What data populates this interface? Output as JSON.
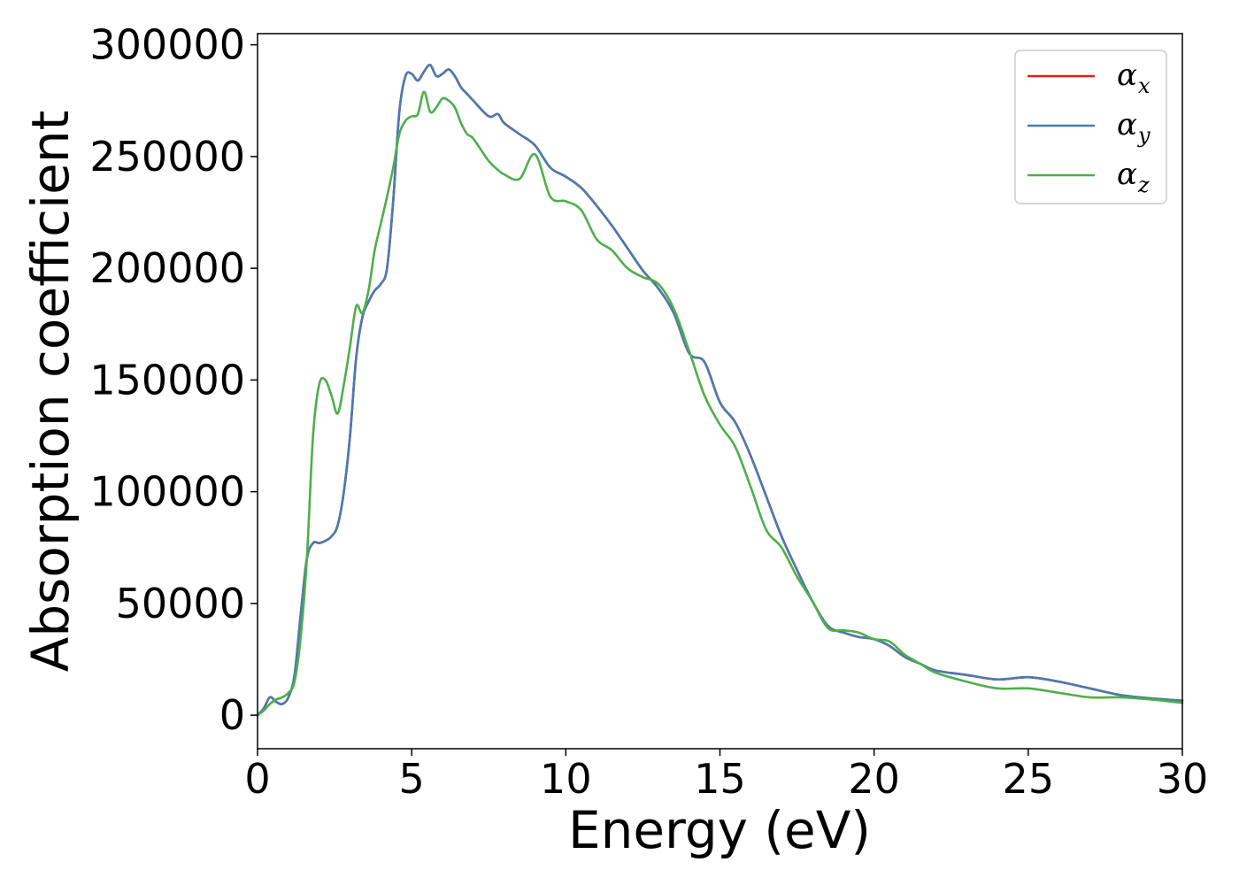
{
  "chart_data": {
    "type": "line",
    "title": "",
    "xlabel": "Energy (eV)",
    "ylabel": "Absorption coefficient",
    "xlim": [
      0,
      30
    ],
    "ylim": [
      -15000,
      305000
    ],
    "xticks": [
      0,
      5,
      10,
      15,
      20,
      25,
      30
    ],
    "xtick_labels": [
      "0",
      "5",
      "10",
      "15",
      "20",
      "25",
      "30"
    ],
    "yticks": [
      0,
      50000,
      100000,
      150000,
      200000,
      250000,
      300000
    ],
    "ytick_labels": [
      "0",
      "50000",
      "100000",
      "150000",
      "200000",
      "250000",
      "300000"
    ],
    "grid": false,
    "legend_position": "top-right",
    "series": [
      {
        "name": "αx",
        "legend_base": "α",
        "legend_sub": "x",
        "color": "#e41a1c",
        "x": [
          0,
          0.2,
          0.4,
          0.6,
          0.8,
          1.0,
          1.2,
          1.4,
          1.6,
          1.8,
          2.0,
          2.2,
          2.4,
          2.6,
          2.8,
          3.0,
          3.2,
          3.4,
          3.6,
          3.8,
          4.0,
          4.2,
          4.4,
          4.6,
          4.8,
          5.0,
          5.2,
          5.4,
          5.6,
          5.8,
          6.0,
          6.2,
          6.4,
          6.6,
          6.8,
          7.0,
          7.5,
          7.8,
          8.0,
          8.5,
          9.0,
          9.5,
          10.0,
          10.5,
          11.0,
          11.5,
          12.0,
          12.5,
          13.0,
          13.5,
          14.0,
          14.5,
          15.0,
          15.5,
          16.0,
          16.5,
          17.0,
          17.5,
          18.0,
          18.5,
          19.0,
          19.5,
          20.0,
          20.5,
          21.0,
          21.5,
          22.0,
          23.0,
          24.0,
          25.0,
          26.0,
          27.0,
          28.0,
          29.0,
          30.0
        ],
        "values": [
          0,
          3000,
          8000,
          6000,
          5000,
          8000,
          18000,
          45000,
          70000,
          77000,
          77000,
          78000,
          80000,
          85000,
          100000,
          125000,
          160000,
          178000,
          185000,
          190000,
          193000,
          200000,
          230000,
          270000,
          286000,
          287000,
          284000,
          288000,
          291000,
          286000,
          287000,
          289000,
          286000,
          281000,
          278000,
          275000,
          268000,
          269000,
          265000,
          260000,
          255000,
          245000,
          241000,
          236000,
          228000,
          219000,
          209000,
          199000,
          191000,
          180000,
          162000,
          158000,
          140000,
          131000,
          116000,
          98000,
          80000,
          65000,
          51000,
          40000,
          37000,
          35000,
          34000,
          31000,
          26000,
          23000,
          20000,
          18000,
          16000,
          17000,
          15000,
          12000,
          9000,
          7500,
          6500
        ]
      },
      {
        "name": "αy",
        "legend_base": "α",
        "legend_sub": "y",
        "color": "#4a7ab2",
        "x": [
          0,
          0.2,
          0.4,
          0.6,
          0.8,
          1.0,
          1.2,
          1.4,
          1.6,
          1.8,
          2.0,
          2.2,
          2.4,
          2.6,
          2.8,
          3.0,
          3.2,
          3.4,
          3.6,
          3.8,
          4.0,
          4.2,
          4.4,
          4.6,
          4.8,
          5.0,
          5.2,
          5.4,
          5.6,
          5.8,
          6.0,
          6.2,
          6.4,
          6.6,
          6.8,
          7.0,
          7.5,
          7.8,
          8.0,
          8.5,
          9.0,
          9.5,
          10.0,
          10.5,
          11.0,
          11.5,
          12.0,
          12.5,
          13.0,
          13.5,
          14.0,
          14.5,
          15.0,
          15.5,
          16.0,
          16.5,
          17.0,
          17.5,
          18.0,
          18.5,
          19.0,
          19.5,
          20.0,
          20.5,
          21.0,
          21.5,
          22.0,
          23.0,
          24.0,
          25.0,
          26.0,
          27.0,
          28.0,
          29.0,
          30.0
        ],
        "values": [
          0,
          3000,
          8000,
          6000,
          5000,
          8000,
          18000,
          45000,
          70000,
          77000,
          77000,
          78000,
          80000,
          85000,
          100000,
          125000,
          160000,
          178000,
          185000,
          190000,
          193000,
          200000,
          230000,
          270000,
          286000,
          287000,
          284000,
          288000,
          291000,
          286000,
          287000,
          289000,
          286000,
          281000,
          278000,
          275000,
          268000,
          269000,
          265000,
          260000,
          255000,
          245000,
          241000,
          236000,
          228000,
          219000,
          209000,
          199000,
          191000,
          180000,
          162000,
          158000,
          140000,
          131000,
          116000,
          98000,
          80000,
          65000,
          51000,
          40000,
          37000,
          35000,
          34000,
          31000,
          26000,
          23000,
          20000,
          18000,
          16000,
          17000,
          15000,
          12000,
          9000,
          7500,
          6500
        ]
      },
      {
        "name": "αz",
        "legend_base": "α",
        "legend_sub": "z",
        "color": "#4daf4a",
        "x": [
          0,
          0.2,
          0.4,
          0.6,
          0.8,
          1.0,
          1.2,
          1.4,
          1.6,
          1.8,
          2.0,
          2.2,
          2.4,
          2.6,
          2.8,
          3.0,
          3.2,
          3.4,
          3.6,
          3.8,
          4.0,
          4.2,
          4.4,
          4.6,
          4.8,
          5.0,
          5.2,
          5.4,
          5.6,
          5.8,
          6.0,
          6.2,
          6.4,
          6.6,
          6.8,
          7.0,
          7.5,
          7.8,
          8.0,
          8.5,
          9.0,
          9.5,
          10.0,
          10.5,
          11.0,
          11.5,
          12.0,
          12.5,
          13.0,
          13.5,
          14.0,
          14.5,
          15.0,
          15.5,
          16.0,
          16.5,
          17.0,
          17.5,
          18.0,
          18.5,
          19.0,
          19.5,
          20.0,
          20.5,
          21.0,
          21.5,
          22.0,
          23.0,
          24.0,
          25.0,
          26.0,
          27.0,
          28.0,
          29.0,
          30.0
        ],
        "values": [
          0,
          2000,
          5000,
          7000,
          8000,
          10000,
          15000,
          35000,
          70000,
          125000,
          148000,
          150000,
          143000,
          135000,
          148000,
          165000,
          183000,
          180000,
          190000,
          208000,
          220000,
          232000,
          245000,
          260000,
          266000,
          268000,
          269000,
          279000,
          270000,
          272000,
          276000,
          275000,
          272000,
          265000,
          260000,
          258000,
          248000,
          244000,
          242000,
          240000,
          251000,
          232000,
          230000,
          226000,
          213000,
          208000,
          200000,
          196000,
          193000,
          182000,
          163000,
          143000,
          130000,
          120000,
          102000,
          83000,
          75000,
          62000,
          51000,
          39000,
          38000,
          37000,
          34000,
          33000,
          27000,
          23000,
          19000,
          15000,
          12000,
          12000,
          10000,
          8000,
          8000,
          7000,
          5500
        ]
      }
    ]
  }
}
